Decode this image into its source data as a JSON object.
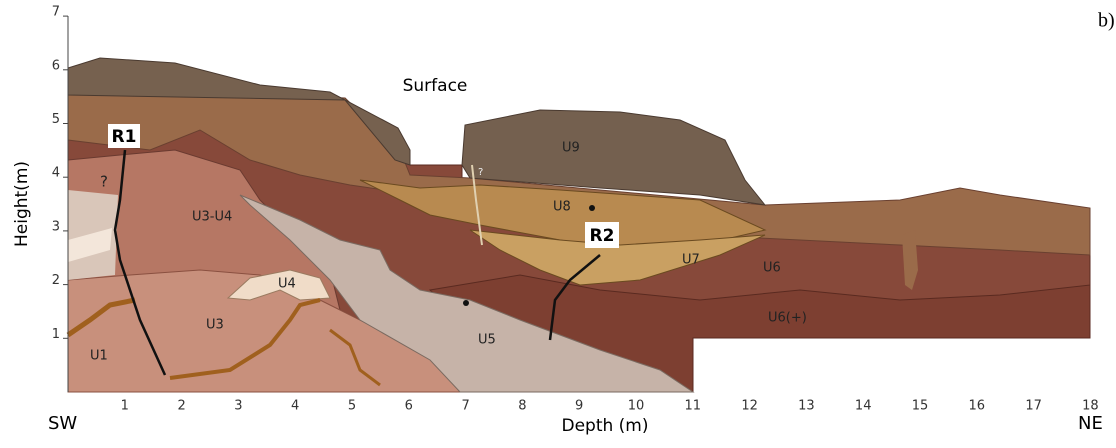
{
  "panel_label": "b)",
  "y_axis": {
    "title": "Height(m)",
    "ticks": [
      1,
      2,
      3,
      4,
      5,
      6,
      7
    ]
  },
  "x_axis": {
    "title": "Depth (m)",
    "ticks": [
      1,
      2,
      3,
      4,
      5,
      6,
      7,
      8,
      9,
      10,
      11,
      12,
      13,
      14,
      15,
      16,
      17,
      18
    ]
  },
  "left_label": "SW",
  "right_label": "NE",
  "surface_label": "Surface",
  "units": [
    "U9",
    "U8",
    "U7",
    "U6",
    "U6(+)",
    "U5",
    "U4",
    "U3-U4",
    "U3",
    "U1"
  ],
  "markers": [
    "R1",
    "R2"
  ],
  "question_marks": [
    "?",
    "?"
  ]
}
